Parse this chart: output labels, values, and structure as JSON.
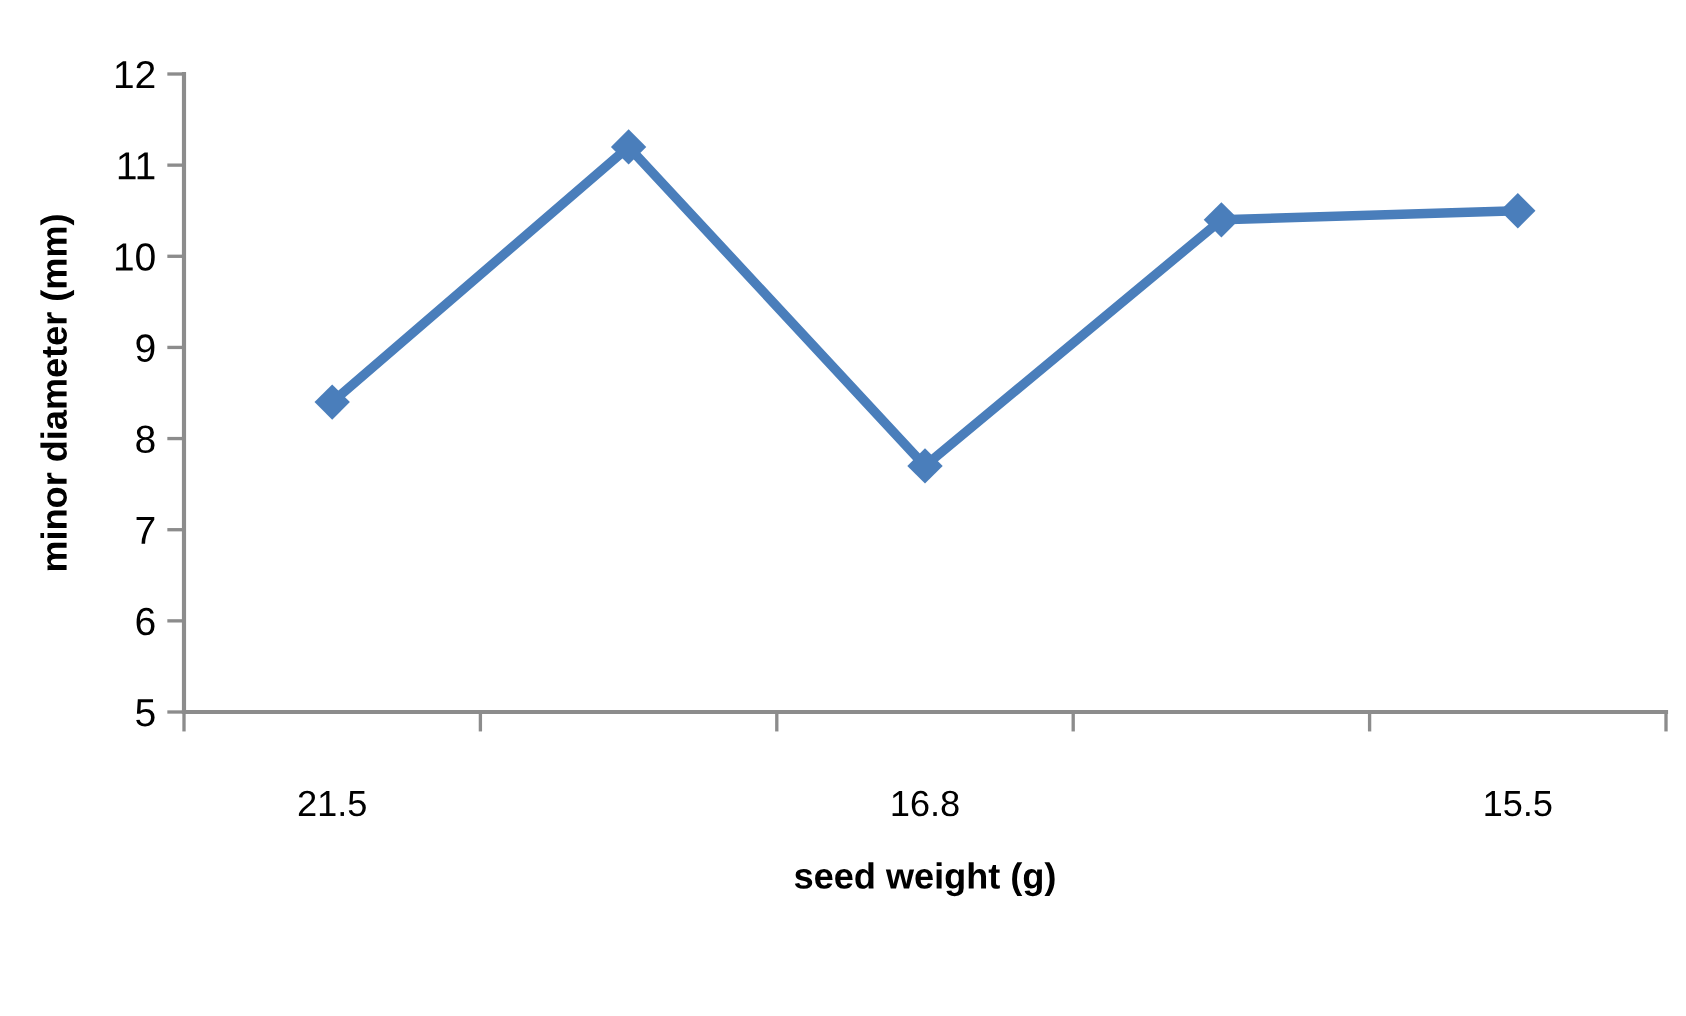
{
  "chart_data": {
    "type": "line",
    "xlabel": "seed weight (g)",
    "ylabel": "minor diameter (mm)",
    "categories": [
      "21.5",
      null,
      "16.8",
      null,
      "15.5"
    ],
    "series": [
      {
        "color": "#4a7ebb",
        "values": [
          8.4,
          11.2,
          7.7,
          10.4,
          10.5
        ]
      }
    ],
    "ylim": [
      5,
      12
    ],
    "yticks": [
      5,
      6,
      7,
      8,
      9,
      10,
      11,
      12
    ],
    "marker": "diamond",
    "line_style": "solid"
  }
}
